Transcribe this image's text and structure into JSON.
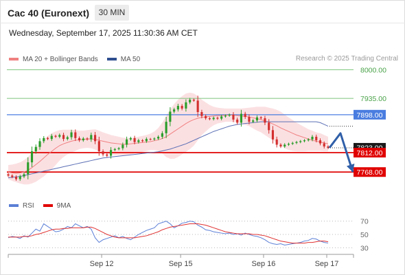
{
  "header": {
    "instrument": "Cac 40 (Euronext)",
    "timeframe": "30 MIN",
    "datetime": "Wednesday, September 17, 2025 11:30:36 AM CET",
    "credit": "Research © 2025 Trading Central"
  },
  "legend": {
    "ma20_label": "MA 20 + Bollinger Bands",
    "ma50_label": "MA 50",
    "rsi_label": "RSI",
    "ma9_label": "9MA"
  },
  "colors": {
    "candle_up": "#2a9d2a",
    "candle_down": "#d32f2f",
    "ma20": "#f08080",
    "bollinger_band": "#fadadd",
    "ma50": "#5b6fb5",
    "resistance": "#7cc47c",
    "support": "#e00000",
    "pivot": "#4a7de0",
    "forecast_arrow": "#2f5fa8",
    "rsi": "#5b7fd6",
    "rsi_ma9": "#e03030"
  },
  "chart_data": [
    {
      "type": "candlestick",
      "title": "Cac 40 (Euronext)",
      "interval": "30 MIN",
      "x_tick_labels": [
        "Sep 12",
        "Sep 15",
        "Sep 16",
        "Sep 17"
      ],
      "ylim": [
        7745,
        8010
      ],
      "levels": [
        {
          "value": 8000.0,
          "label": "8000.00",
          "role": "resistance"
        },
        {
          "value": 7935.0,
          "label": "7935.00",
          "role": "resistance"
        },
        {
          "value": 7898.0,
          "label": "7898.00",
          "role": "pivot"
        },
        {
          "value": 7812.0,
          "label": "7812.00",
          "role": "support"
        },
        {
          "value": 7768.0,
          "label": "7768.00",
          "role": "support"
        }
      ],
      "last_price": {
        "value": 7823.0,
        "label": "7823.00"
      },
      "forecast_path": [
        7823,
        7856,
        7768
      ],
      "series": [
        {
          "name": "Price close",
          "values": [
            7760,
            7757,
            7752,
            7758,
            7763,
            7790,
            7815,
            7825,
            7838,
            7845,
            7843,
            7850,
            7848,
            7852,
            7843,
            7847,
            7858,
            7845,
            7840,
            7844,
            7842,
            7852,
            7838,
            7815,
            7808,
            7805,
            7818,
            7820,
            7822,
            7830,
            7842,
            7845,
            7836,
            7840,
            7838,
            7843,
            7842,
            7844,
            7848,
            7856,
            7882,
            7905,
            7910,
            7918,
            7912,
            7926,
            7932,
            7930,
            7904,
            7895,
            7890,
            7888,
            7891,
            7889,
            7894,
            7896,
            7898,
            7887,
            7880,
            7900,
            7893,
            7882,
            7885,
            7892,
            7890,
            7880,
            7863,
            7842,
            7830,
            7826,
            7830,
            7832,
            7834,
            7836,
            7838,
            7840,
            7842,
            7848,
            7840,
            7833,
            7826,
            7823
          ]
        },
        {
          "name": "MA 20",
          "values": [
            7768,
            7766,
            7765,
            7766,
            7768,
            7772,
            7778,
            7785,
            7792,
            7800,
            7808,
            7815,
            7822,
            7828,
            7832,
            7835,
            7838,
            7840,
            7841,
            7842,
            7843,
            7843,
            7842,
            7840,
            7838,
            7836,
            7834,
            7833,
            7832,
            7831,
            7831,
            7832,
            7833,
            7834,
            7835,
            7836,
            7837,
            7839,
            7841,
            7844,
            7848,
            7854,
            7860,
            7866,
            7872,
            7878,
            7883,
            7887,
            7890,
            7892,
            7893,
            7894,
            7895,
            7896,
            7896,
            7897,
            7897,
            7897,
            7896,
            7895,
            7894,
            7893,
            7891,
            7889,
            7887,
            7884,
            7881,
            7877,
            7873,
            7868,
            7864,
            7860,
            7856,
            7852,
            7849,
            7846,
            7843,
            7840,
            7838,
            7836,
            7834,
            7832
          ]
        },
        {
          "name": "MA 50",
          "values": [
            7755,
            7756,
            7757,
            7758,
            7760,
            7762,
            7764,
            7766,
            7768,
            7770,
            7772,
            7774,
            7776,
            7778,
            7780,
            7782,
            7784,
            7786,
            7788,
            7790,
            7792,
            7794,
            7796,
            7798,
            7800,
            7801,
            7802,
            7803,
            7804,
            7805,
            7806,
            7807,
            7808,
            7809,
            7810,
            7811,
            7812,
            7813,
            7814,
            7816,
            7818,
            7820,
            7823,
            7826,
            7829,
            7832,
            7836,
            7840,
            7844,
            7848,
            7852,
            7856,
            7860,
            7863,
            7866,
            7869,
            7872,
            7874,
            7876,
            7877,
            7878,
            7879,
            7880,
            7881,
            7882,
            7882,
            7882,
            7882,
            7882,
            7882,
            7882,
            7882,
            7882,
            7882,
            7882,
            7882,
            7882,
            7882,
            7882,
            7880,
            7876,
            7872
          ]
        },
        {
          "name": "Bollinger upper",
          "values": [
            7784,
            7785,
            7787,
            7790,
            7795,
            7802,
            7812,
            7822,
            7832,
            7842,
            7850,
            7856,
            7860,
            7863,
            7864,
            7864,
            7864,
            7863,
            7862,
            7862,
            7863,
            7864,
            7865,
            7862,
            7858,
            7855,
            7852,
            7850,
            7848,
            7846,
            7845,
            7845,
            7846,
            7848,
            7850,
            7852,
            7855,
            7860,
            7868,
            7880,
            7895,
            7910,
            7922,
            7932,
            7940,
            7946,
            7948,
            7946,
            7940,
            7932,
            7926,
            7920,
            7916,
            7914,
            7913,
            7912,
            7912,
            7912,
            7912,
            7912,
            7913,
            7914,
            7915,
            7916,
            7916,
            7916,
            7914,
            7912,
            7909,
            7905,
            7898,
            7892,
            7886,
            7880,
            7875,
            7870,
            7865,
            7862,
            7858,
            7856,
            7852,
            7848
          ]
        },
        {
          "name": "Bollinger lower",
          "values": [
            7752,
            7748,
            7745,
            7742,
            7740,
            7740,
            7742,
            7746,
            7752,
            7758,
            7766,
            7774,
            7784,
            7794,
            7802,
            7808,
            7812,
            7816,
            7820,
            7822,
            7823,
            7822,
            7819,
            7815,
            7812,
            7810,
            7808,
            7806,
            7806,
            7806,
            7806,
            7808,
            7810,
            7812,
            7814,
            7816,
            7818,
            7818,
            7816,
            7810,
            7802,
            7798,
            7798,
            7802,
            7808,
            7814,
            7820,
            7828,
            7840,
            7852,
            7860,
            7868,
            7874,
            7878,
            7880,
            7882,
            7882,
            7882,
            7880,
            7878,
            7875,
            7872,
            7867,
            7862,
            7858,
            7852,
            7846,
            7840,
            7834,
            7828,
            7822,
            7818,
            7816,
            7815,
            7815,
            7815,
            7816,
            7816,
            7816,
            7816,
            7815,
            7815
          ]
        }
      ]
    },
    {
      "type": "line",
      "title": "RSI",
      "x_tick_labels": [
        "Sep 12",
        "Sep 15",
        "Sep 16",
        "Sep 17"
      ],
      "ylim": [
        20,
        80
      ],
      "y_ticks": [
        70,
        50,
        30
      ],
      "series": [
        {
          "name": "RSI",
          "values": [
            45,
            47,
            46,
            44,
            48,
            46,
            52,
            58,
            55,
            66,
            62,
            58,
            54,
            55,
            58,
            62,
            60,
            66,
            63,
            60,
            62,
            58,
            45,
            38,
            42,
            44,
            46,
            48,
            45,
            47,
            44,
            42,
            46,
            50,
            53,
            56,
            58,
            60,
            66,
            68,
            70,
            66,
            60,
            63,
            67,
            68,
            70,
            69,
            64,
            61,
            57,
            56,
            54,
            53,
            52,
            51,
            52,
            50,
            51,
            49,
            52,
            50,
            48,
            47,
            45,
            42,
            38,
            36,
            35,
            36,
            34,
            35,
            36,
            37,
            38,
            40,
            41,
            44,
            43,
            40,
            38,
            37
          ]
        },
        {
          "name": "9MA",
          "values": [
            46,
            46,
            46,
            46,
            47,
            47,
            48,
            50,
            51,
            53,
            55,
            57,
            58,
            58,
            59,
            59,
            60,
            60,
            60,
            60,
            61,
            61,
            59,
            56,
            53,
            50,
            48,
            46,
            45,
            45,
            45,
            45,
            45,
            46,
            47,
            48,
            50,
            52,
            54,
            57,
            59,
            61,
            62,
            63,
            64,
            65,
            66,
            66,
            66,
            65,
            64,
            62,
            60,
            58,
            56,
            54,
            53,
            52,
            51,
            51,
            51,
            51,
            50,
            50,
            49,
            48,
            46,
            44,
            42,
            40,
            39,
            38,
            37,
            37,
            37,
            37,
            38,
            38,
            39,
            40,
            40,
            39
          ]
        }
      ]
    }
  ]
}
